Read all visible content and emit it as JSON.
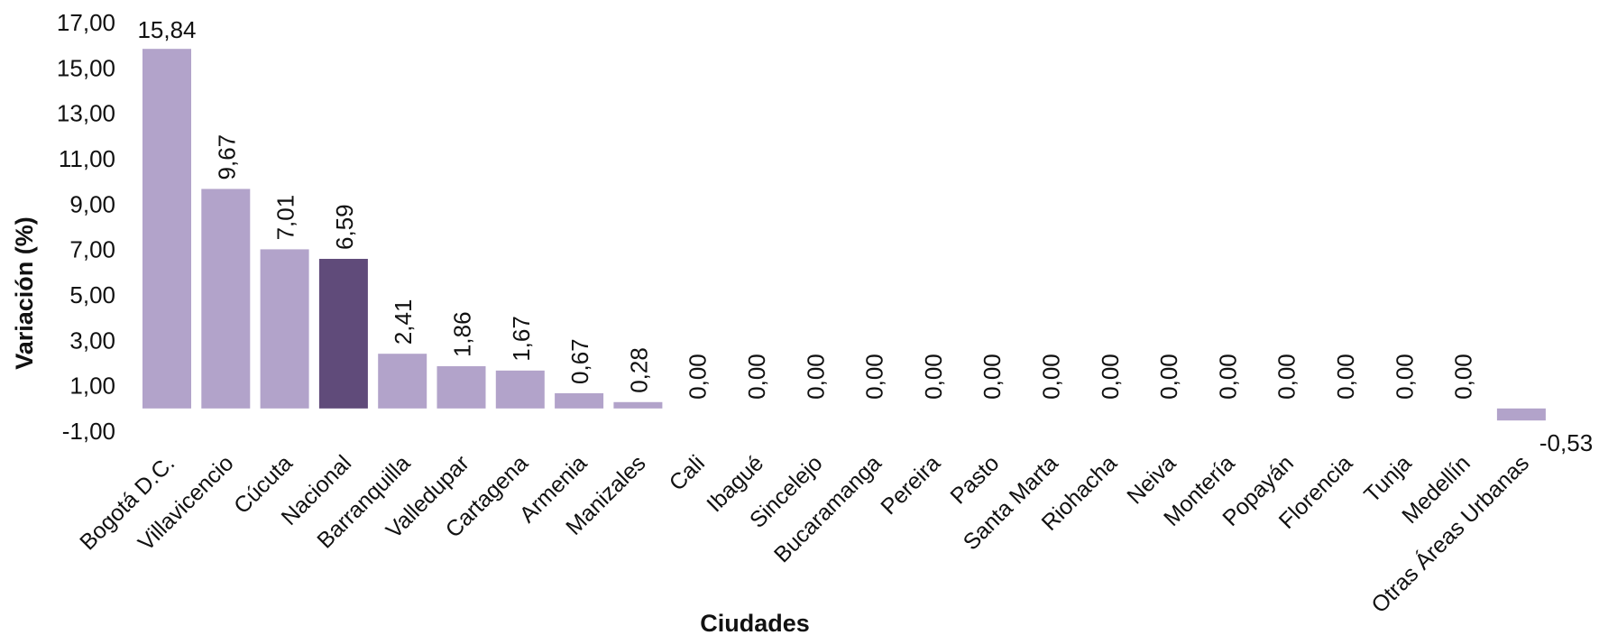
{
  "chart_data": {
    "type": "bar",
    "title": "",
    "xlabel": "Ciudades",
    "ylabel": "Variación (%)",
    "ylim": [
      -1,
      17
    ],
    "yticks": [
      "17,00",
      "15,00",
      "13,00",
      "11,00",
      "9,00",
      "7,00",
      "5,00",
      "3,00",
      "1,00",
      "-1,00"
    ],
    "ytick_values": [
      17,
      15,
      13,
      11,
      9,
      7,
      5,
      3,
      1,
      -1
    ],
    "grid": false,
    "legend": "none",
    "categories": [
      "Bogotá D.C.",
      "Villavicencio",
      "Cúcuta",
      "Nacional",
      "Barranquilla",
      "Valledupar",
      "Cartagena",
      "Armenia",
      "Manizales",
      "Cali",
      "Ibagué",
      "Sincelejo",
      "Bucaramanga",
      "Pereira",
      "Pasto",
      "Santa Marta",
      "Riohacha",
      "Neiva",
      "Montería",
      "Popayán",
      "Florencia",
      "Tunja",
      "Medellín",
      "Otras Áreas Urbanas"
    ],
    "values": [
      15.84,
      9.67,
      7.01,
      6.59,
      2.41,
      1.86,
      1.67,
      0.67,
      0.28,
      0.0,
      0.0,
      0.0,
      0.0,
      0.0,
      0.0,
      0.0,
      0.0,
      0.0,
      0.0,
      0.0,
      0.0,
      0.0,
      0.0,
      -0.53
    ],
    "value_labels": [
      "15,84",
      "9,67",
      "7,01",
      "6,59",
      "2,41",
      "1,86",
      "1,67",
      "0,67",
      "0,28",
      "0,00",
      "0,00",
      "0,00",
      "0,00",
      "0,00",
      "0,00",
      "0,00",
      "0,00",
      "0,00",
      "0,00",
      "0,00",
      "0,00",
      "0,00",
      "0,00",
      "-0,53"
    ],
    "colors": {
      "bar": "#b2a3ca",
      "highlight": "#604b7a"
    },
    "highlight_category": "Nacional"
  }
}
